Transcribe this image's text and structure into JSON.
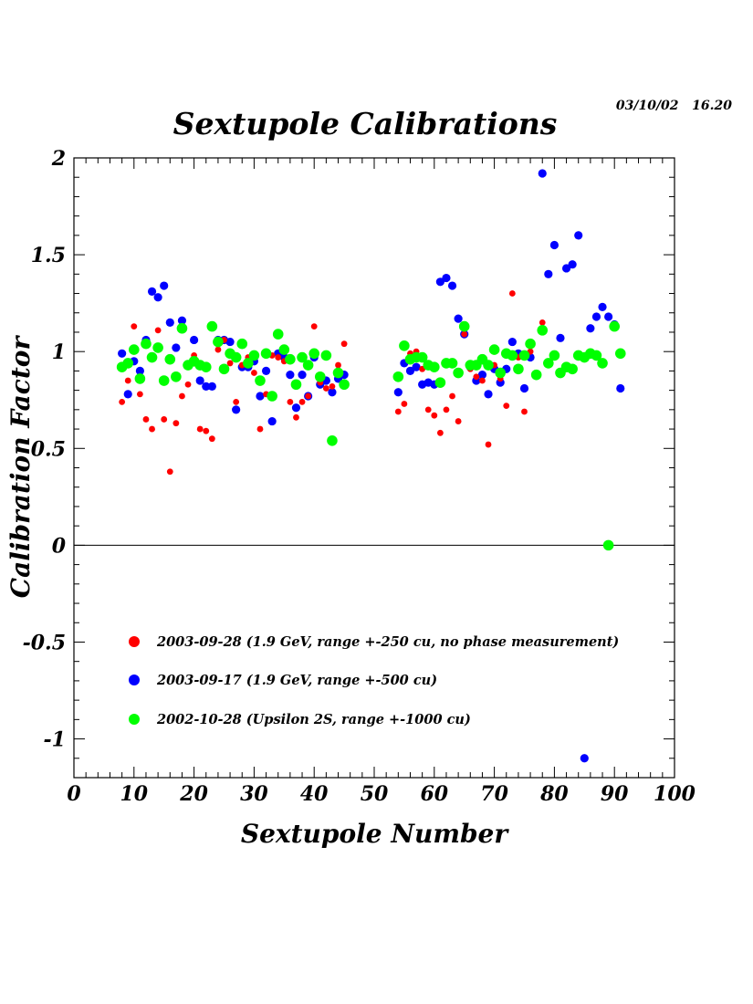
{
  "timestamp": "03/10/02   16.20",
  "chart_data": {
    "type": "scatter",
    "title": "Sextupole Calibrations",
    "xlabel": "Sextupole Number",
    "ylabel": "Calibration Factor",
    "xlim": [
      0,
      100
    ],
    "ylim": [
      -1.2,
      2
    ],
    "x_ticks": [
      0,
      10,
      20,
      30,
      40,
      50,
      60,
      70,
      80,
      90,
      100
    ],
    "y_ticks": [
      -1,
      -0.5,
      0,
      0.5,
      1,
      1.5,
      2
    ],
    "y_tick_labels": [
      "-1",
      "-0.5",
      "0",
      "0.5",
      "1",
      "1.5",
      "2"
    ],
    "reference_line_y": 0,
    "legend_placement": "lower-left inside",
    "series": [
      {
        "name": "2003-09-28 (1.9 GeV, range +-250 cu, no phase measurement)",
        "color": "#ff0000",
        "marker_size": "small",
        "points": [
          [
            8,
            0.74
          ],
          [
            9,
            0.85
          ],
          [
            10,
            1.13
          ],
          [
            11,
            0.78
          ],
          [
            12,
            0.65
          ],
          [
            13,
            0.6
          ],
          [
            14,
            1.11
          ],
          [
            15,
            0.65
          ],
          [
            16,
            0.38
          ],
          [
            17,
            0.63
          ],
          [
            18,
            0.77
          ],
          [
            19,
            0.83
          ],
          [
            20,
            0.98
          ],
          [
            21,
            0.6
          ],
          [
            22,
            0.59
          ],
          [
            23,
            0.55
          ],
          [
            24,
            1.01
          ],
          [
            25,
            1.06
          ],
          [
            26,
            0.94
          ],
          [
            27,
            0.74
          ],
          [
            28,
            0.93
          ],
          [
            29,
            0.97
          ],
          [
            30,
            0.89
          ],
          [
            31,
            0.6
          ],
          [
            32,
            0.78
          ],
          [
            33,
            0.98
          ],
          [
            34,
            0.97
          ],
          [
            35,
            0.95
          ],
          [
            36,
            0.74
          ],
          [
            37,
            0.66
          ],
          [
            38,
            0.74
          ],
          [
            39,
            0.77
          ],
          [
            40,
            1.13
          ],
          [
            41,
            0.84
          ],
          [
            42,
            0.81
          ],
          [
            43,
            0.82
          ],
          [
            44,
            0.93
          ],
          [
            45,
            1.04
          ],
          [
            54,
            0.69
          ],
          [
            55,
            0.73
          ],
          [
            56,
            0.99
          ],
          [
            57,
            1.0
          ],
          [
            58,
            0.91
          ],
          [
            59,
            0.7
          ],
          [
            60,
            0.67
          ],
          [
            61,
            0.58
          ],
          [
            62,
            0.7
          ],
          [
            63,
            0.77
          ],
          [
            64,
            0.64
          ],
          [
            65,
            1.09
          ],
          [
            66,
            0.91
          ],
          [
            67,
            0.87
          ],
          [
            68,
            0.85
          ],
          [
            69,
            0.52
          ],
          [
            70,
            0.93
          ],
          [
            71,
            0.86
          ],
          [
            72,
            0.72
          ],
          [
            73,
            1.3
          ],
          [
            74,
            0.97
          ],
          [
            75,
            0.69
          ],
          [
            76,
            1.0
          ],
          [
            78,
            1.15
          ]
        ]
      },
      {
        "name": "2003-09-17 (1.9 GeV, range +-500 cu)",
        "color": "#0000ff",
        "marker_size": "medium",
        "points": [
          [
            8,
            0.99
          ],
          [
            9,
            0.78
          ],
          [
            10,
            0.95
          ],
          [
            11,
            0.9
          ],
          [
            12,
            1.06
          ],
          [
            13,
            1.31
          ],
          [
            14,
            1.28
          ],
          [
            15,
            1.34
          ],
          [
            16,
            1.15
          ],
          [
            17,
            1.02
          ],
          [
            18,
            1.16
          ],
          [
            19,
            0.93
          ],
          [
            20,
            1.06
          ],
          [
            21,
            0.85
          ],
          [
            22,
            0.82
          ],
          [
            23,
            0.82
          ],
          [
            24,
            1.06
          ],
          [
            25,
            1.06
          ],
          [
            26,
            1.05
          ],
          [
            27,
            0.7
          ],
          [
            28,
            0.92
          ],
          [
            29,
            0.92
          ],
          [
            30,
            0.95
          ],
          [
            31,
            0.77
          ],
          [
            32,
            0.9
          ],
          [
            33,
            0.64
          ],
          [
            34,
            0.99
          ],
          [
            35,
            0.97
          ],
          [
            36,
            0.88
          ],
          [
            37,
            0.71
          ],
          [
            38,
            0.88
          ],
          [
            39,
            0.77
          ],
          [
            40,
            0.97
          ],
          [
            41,
            0.83
          ],
          [
            42,
            0.85
          ],
          [
            43,
            0.79
          ],
          [
            44,
            0.86
          ],
          [
            45,
            0.88
          ],
          [
            54,
            0.79
          ],
          [
            55,
            0.94
          ],
          [
            56,
            0.9
          ],
          [
            57,
            0.92
          ],
          [
            58,
            0.83
          ],
          [
            59,
            0.84
          ],
          [
            60,
            0.83
          ],
          [
            61,
            1.36
          ],
          [
            62,
            1.38
          ],
          [
            63,
            1.34
          ],
          [
            64,
            1.17
          ],
          [
            65,
            1.09
          ],
          [
            66,
            0.92
          ],
          [
            67,
            0.85
          ],
          [
            68,
            0.88
          ],
          [
            69,
            0.78
          ],
          [
            70,
            0.91
          ],
          [
            71,
            0.84
          ],
          [
            72,
            0.91
          ],
          [
            73,
            1.05
          ],
          [
            74,
            0.99
          ],
          [
            75,
            0.81
          ],
          [
            76,
            0.97
          ],
          [
            77,
            0.88
          ],
          [
            78,
            1.92
          ],
          [
            79,
            1.4
          ],
          [
            80,
            1.55
          ],
          [
            81,
            1.07
          ],
          [
            82,
            1.43
          ],
          [
            83,
            1.45
          ],
          [
            84,
            1.6
          ],
          [
            85,
            -1.1
          ],
          [
            86,
            1.12
          ],
          [
            87,
            1.18
          ],
          [
            88,
            1.23
          ],
          [
            89,
            1.18
          ],
          [
            90,
            1.14
          ],
          [
            91,
            0.81
          ]
        ]
      },
      {
        "name": "2002-10-28 (Upsilon 2S, range +-1000 cu)",
        "color": "#00ff00",
        "marker_size": "large",
        "points": [
          [
            8,
            0.92
          ],
          [
            9,
            0.94
          ],
          [
            10,
            1.01
          ],
          [
            11,
            0.86
          ],
          [
            12,
            1.04
          ],
          [
            13,
            0.97
          ],
          [
            14,
            1.02
          ],
          [
            15,
            0.85
          ],
          [
            16,
            0.96
          ],
          [
            17,
            0.87
          ],
          [
            18,
            1.12
          ],
          [
            19,
            0.93
          ],
          [
            20,
            0.95
          ],
          [
            21,
            0.93
          ],
          [
            22,
            0.92
          ],
          [
            23,
            1.13
          ],
          [
            24,
            1.05
          ],
          [
            25,
            0.91
          ],
          [
            26,
            0.99
          ],
          [
            27,
            0.97
          ],
          [
            28,
            1.04
          ],
          [
            29,
            0.94
          ],
          [
            30,
            0.98
          ],
          [
            31,
            0.85
          ],
          [
            32,
            0.99
          ],
          [
            33,
            0.77
          ],
          [
            34,
            1.09
          ],
          [
            35,
            1.01
          ],
          [
            36,
            0.96
          ],
          [
            37,
            0.83
          ],
          [
            38,
            0.97
          ],
          [
            39,
            0.93
          ],
          [
            40,
            0.99
          ],
          [
            41,
            0.87
          ],
          [
            42,
            0.98
          ],
          [
            43,
            0.54
          ],
          [
            44,
            0.89
          ],
          [
            45,
            0.83
          ],
          [
            54,
            0.87
          ],
          [
            55,
            1.03
          ],
          [
            56,
            0.96
          ],
          [
            57,
            0.97
          ],
          [
            58,
            0.97
          ],
          [
            59,
            0.93
          ],
          [
            60,
            0.92
          ],
          [
            61,
            0.84
          ],
          [
            62,
            0.94
          ],
          [
            63,
            0.94
          ],
          [
            64,
            0.89
          ],
          [
            65,
            1.13
          ],
          [
            66,
            0.93
          ],
          [
            67,
            0.93
          ],
          [
            68,
            0.96
          ],
          [
            69,
            0.93
          ],
          [
            70,
            1.01
          ],
          [
            71,
            0.89
          ],
          [
            72,
            0.99
          ],
          [
            73,
            0.98
          ],
          [
            74,
            0.91
          ],
          [
            75,
            0.98
          ],
          [
            76,
            1.04
          ],
          [
            77,
            0.88
          ],
          [
            78,
            1.11
          ],
          [
            79,
            0.94
          ],
          [
            80,
            0.98
          ],
          [
            81,
            0.89
          ],
          [
            82,
            0.92
          ],
          [
            83,
            0.91
          ],
          [
            84,
            0.98
          ],
          [
            85,
            0.97
          ],
          [
            86,
            0.99
          ],
          [
            87,
            0.98
          ],
          [
            88,
            0.94
          ],
          [
            89,
            0.0
          ],
          [
            90,
            1.13
          ],
          [
            91,
            0.99
          ]
        ]
      }
    ]
  }
}
